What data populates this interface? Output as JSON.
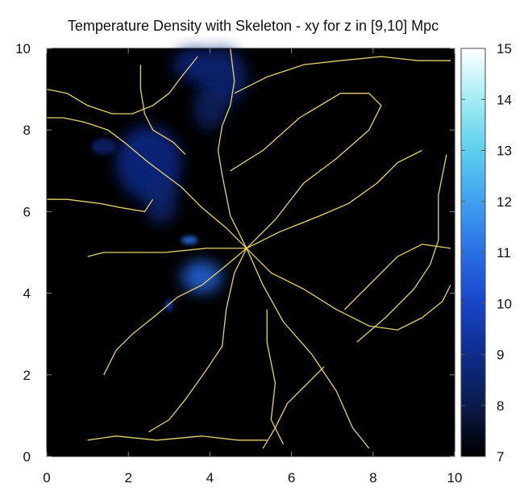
{
  "chart_data": {
    "type": "heatmap",
    "title": "Temperature Density with Skeleton - xy for z in [9,10] Mpc",
    "xlim": [
      0,
      10
    ],
    "ylim": [
      0,
      10
    ],
    "x_ticks": [
      "0",
      "2",
      "4",
      "6",
      "8",
      "10"
    ],
    "y_ticks": [
      "0",
      "2",
      "4",
      "6",
      "8",
      "10"
    ],
    "colorbar": {
      "range": [
        7,
        15
      ],
      "ticks": [
        "7",
        "8",
        "9",
        "10",
        "11",
        "12",
        "13",
        "14",
        "15"
      ],
      "colors": [
        "#000000",
        "#0a1a4a",
        "#0d2c8c",
        "#1744c8",
        "#2a6fe6",
        "#3fa0f0",
        "#5ccfee",
        "#a3ecf4",
        "#ffffff"
      ]
    },
    "background_color": "#000000",
    "skeleton_color": "#e4d36a",
    "density_blobs": [
      {
        "x": 2.5,
        "y": 7.2,
        "rx": 0.8,
        "ry": 0.9,
        "level": 9.0
      },
      {
        "x": 2.8,
        "y": 6.3,
        "rx": 0.4,
        "ry": 0.6,
        "level": 8.6
      },
      {
        "x": 3.6,
        "y": 9.6,
        "rx": 0.5,
        "ry": 0.4,
        "level": 8.8
      },
      {
        "x": 4.3,
        "y": 9.3,
        "rx": 0.6,
        "ry": 0.7,
        "level": 8.7
      },
      {
        "x": 4.0,
        "y": 8.5,
        "rx": 0.4,
        "ry": 0.5,
        "level": 8.4
      },
      {
        "x": 3.8,
        "y": 4.4,
        "rx": 0.5,
        "ry": 0.4,
        "level": 10.8
      },
      {
        "x": 3.5,
        "y": 5.3,
        "rx": 0.2,
        "ry": 0.1,
        "level": 11.0
      },
      {
        "x": 3.0,
        "y": 3.7,
        "rx": 0.1,
        "ry": 0.15,
        "level": 9.5
      },
      {
        "x": 1.4,
        "y": 7.6,
        "rx": 0.3,
        "ry": 0.2,
        "level": 8.5
      }
    ],
    "skeleton": [
      [
        [
          4.9,
          5.1
        ],
        [
          4.5,
          5.9
        ],
        [
          4.3,
          6.9
        ],
        [
          4.2,
          7.5
        ],
        [
          4.3,
          8.1
        ],
        [
          4.5,
          8.6
        ],
        [
          4.6,
          9.2
        ],
        [
          4.5,
          10.0
        ]
      ],
      [
        [
          4.9,
          5.1
        ],
        [
          4.4,
          5.6
        ],
        [
          3.8,
          6.1
        ],
        [
          3.3,
          6.6
        ],
        [
          2.5,
          7.2
        ],
        [
          1.9,
          7.7
        ],
        [
          1.5,
          8.0
        ],
        [
          0.9,
          8.2
        ],
        [
          0.4,
          8.3
        ],
        [
          0.0,
          8.3
        ]
      ],
      [
        [
          4.9,
          5.1
        ],
        [
          5.6,
          5.8
        ],
        [
          6.3,
          6.7
        ],
        [
          7.1,
          7.3
        ],
        [
          7.9,
          8.0
        ],
        [
          8.2,
          8.6
        ],
        [
          7.9,
          8.9
        ],
        [
          7.2,
          8.9
        ],
        [
          6.2,
          8.3
        ],
        [
          5.3,
          7.5
        ],
        [
          4.5,
          7.0
        ]
      ],
      [
        [
          4.9,
          5.1
        ],
        [
          5.7,
          5.5
        ],
        [
          6.7,
          5.9
        ],
        [
          7.4,
          6.2
        ],
        [
          8.1,
          6.7
        ],
        [
          8.6,
          7.2
        ],
        [
          9.2,
          7.5
        ]
      ],
      [
        [
          4.9,
          5.1
        ],
        [
          3.9,
          5.1
        ],
        [
          2.9,
          5.0
        ],
        [
          1.9,
          5.0
        ],
        [
          1.4,
          5.0
        ],
        [
          1.0,
          4.9
        ]
      ],
      [
        [
          4.9,
          5.1
        ],
        [
          4.3,
          4.6
        ],
        [
          3.8,
          4.2
        ],
        [
          3.2,
          3.9
        ],
        [
          2.6,
          3.4
        ],
        [
          2.1,
          3.0
        ],
        [
          1.7,
          2.6
        ],
        [
          1.4,
          2.0
        ]
      ],
      [
        [
          4.9,
          5.1
        ],
        [
          4.6,
          4.5
        ],
        [
          4.4,
          3.6
        ],
        [
          4.3,
          2.7
        ],
        [
          3.9,
          2.1
        ],
        [
          3.4,
          1.4
        ],
        [
          3.0,
          0.9
        ],
        [
          2.5,
          0.6
        ]
      ],
      [
        [
          4.9,
          5.1
        ],
        [
          5.3,
          4.2
        ],
        [
          5.8,
          3.3
        ],
        [
          6.5,
          2.5
        ],
        [
          7.1,
          1.6
        ],
        [
          7.5,
          0.7
        ],
        [
          7.9,
          0.2
        ]
      ],
      [
        [
          4.9,
          5.1
        ],
        [
          5.5,
          4.5
        ],
        [
          6.3,
          4.1
        ],
        [
          7.1,
          3.6
        ],
        [
          7.9,
          3.2
        ],
        [
          8.6,
          3.1
        ],
        [
          9.2,
          3.4
        ],
        [
          9.7,
          3.8
        ],
        [
          9.9,
          4.2
        ]
      ],
      [
        [
          5.4,
          3.6
        ],
        [
          5.4,
          2.8
        ],
        [
          5.6,
          1.8
        ],
        [
          5.5,
          0.9
        ],
        [
          5.8,
          0.3
        ]
      ],
      [
        [
          7.6,
          2.8
        ],
        [
          8.3,
          3.4
        ],
        [
          9.0,
          4.1
        ],
        [
          9.4,
          4.7
        ],
        [
          9.6,
          5.3
        ],
        [
          9.6,
          6.4
        ],
        [
          9.8,
          7.4
        ]
      ],
      [
        [
          7.3,
          3.6
        ],
        [
          7.9,
          4.2
        ],
        [
          8.6,
          4.9
        ],
        [
          9.2,
          5.2
        ],
        [
          9.9,
          5.1
        ]
      ],
      [
        [
          3.7,
          9.8
        ],
        [
          3.3,
          9.3
        ],
        [
          3.0,
          8.9
        ],
        [
          2.6,
          8.6
        ],
        [
          2.1,
          8.4
        ],
        [
          1.6,
          8.4
        ],
        [
          1.0,
          8.6
        ],
        [
          0.5,
          8.9
        ],
        [
          0.0,
          9.0
        ]
      ],
      [
        [
          4.6,
          8.9
        ],
        [
          5.4,
          9.3
        ],
        [
          6.3,
          9.6
        ],
        [
          7.2,
          9.7
        ],
        [
          8.2,
          9.8
        ],
        [
          9.1,
          9.7
        ],
        [
          9.9,
          9.7
        ]
      ],
      [
        [
          2.3,
          9.6
        ],
        [
          2.3,
          9.0
        ],
        [
          2.4,
          8.4
        ],
        [
          2.6,
          8.0
        ],
        [
          3.1,
          7.7
        ],
        [
          3.4,
          7.4
        ]
      ],
      [
        [
          0.0,
          6.3
        ],
        [
          0.5,
          6.3
        ],
        [
          1.3,
          6.2
        ],
        [
          1.8,
          6.1
        ],
        [
          2.4,
          6.0
        ],
        [
          2.6,
          6.3
        ]
      ],
      [
        [
          1.0,
          0.4
        ],
        [
          1.7,
          0.5
        ],
        [
          2.7,
          0.4
        ],
        [
          3.8,
          0.5
        ],
        [
          4.7,
          0.4
        ],
        [
          5.4,
          0.4
        ]
      ],
      [
        [
          6.8,
          2.2
        ],
        [
          6.3,
          1.7
        ],
        [
          5.9,
          1.3
        ],
        [
          5.6,
          0.7
        ],
        [
          5.3,
          0.2
        ]
      ]
    ]
  }
}
